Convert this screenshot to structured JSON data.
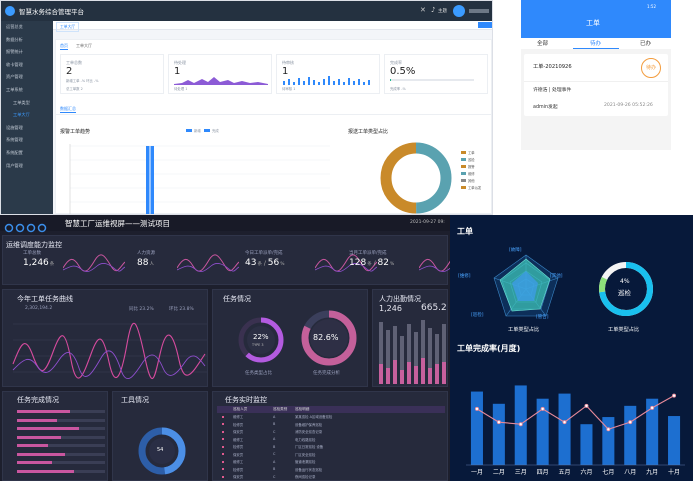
{
  "admin": {
    "app_title": "智慧水务综合管理平台",
    "user_label": "主题",
    "menu": [
      "运营总览",
      "数据分析",
      "报警统计",
      "收卡管理",
      "资产管理",
      "工单系统",
      "工单类型",
      "工单大厅",
      "设施管理",
      "系统管理",
      "系统配置",
      "用户管理"
    ],
    "active_menu_index": 7,
    "tab_active": "工单大厅",
    "tabs": [
      "首页",
      "工单大厅"
    ],
    "stats": [
      {
        "label": "工单总数",
        "value": "2",
        "sub": "新增工单 -% 环比 -%",
        "foot": "总工单数 2"
      },
      {
        "label": "待处理",
        "value": "1",
        "sub": "",
        "foot": "待处理 1"
      },
      {
        "label": "待审核",
        "value": "1",
        "sub": "",
        "foot": "待审核 1"
      },
      {
        "label": "完成率",
        "value": "0.5%",
        "sub": "",
        "foot": "完成率 -%"
      }
    ],
    "section_tab": "数据汇总",
    "trend_title": "报警工单趋势",
    "trend_legend": [
      "新增",
      "完成"
    ],
    "type_title": "报送工单类型占比",
    "type_legend": [
      "工单",
      "巡检",
      "报警",
      "维修",
      "其他",
      "工单派发"
    ]
  },
  "mobile": {
    "status_time": "1:52",
    "title": "工单",
    "tabs": [
      "全部",
      "待办",
      "已办"
    ],
    "active_tab": 1,
    "card": {
      "order_no": "工单-20210926",
      "stamp": "待办",
      "assignee": "许德浩 | 处理事件",
      "author": "admin发起",
      "time": "2021-09-26 05:52:26"
    }
  },
  "screen": {
    "title": "智慧工厂运维视屏——测试项目",
    "datetime": "2021-09-27 09:",
    "capability_title": "运维调度能力监控",
    "kpis": [
      {
        "label": "工单总数",
        "value": "1,246",
        "unit": "条"
      },
      {
        "label": "人力资源",
        "value": "88",
        "unit": "人"
      },
      {
        "label": "今日工单派单/完成",
        "value": "43",
        "unit": "条",
        "value2": "56",
        "unit2": "%"
      },
      {
        "label": "当月工单派单/完成",
        "value": "128",
        "unit": "条",
        "value2": "82",
        "unit2": "%"
      }
    ],
    "trend_title": "今年工单任务曲线",
    "trend_value": "2,302,194.2",
    "trend_legend": [
      "同比 23.2%",
      "环比 23.8%"
    ],
    "task_title": "任务情况",
    "task_pct": "22%",
    "task_pct_label": "TYPE 3",
    "task_caption": "任务类型占比",
    "task_done_pct": "82.6%",
    "task_done_caption": "任务完成分析",
    "labor_title": "人力出勤情况",
    "labor_value_a": "1,246",
    "labor_value_b": "665.2",
    "finish_title": "任务完成情况",
    "tool_title": "工具情况",
    "tool_center": "54",
    "realtime_title": "任务实时监控",
    "realtime_headers": [
      "",
      "巡检人员",
      "巡检类别",
      "巡检明细"
    ],
    "realtime_rows": [
      [
        "",
        "维修工",
        "A",
        "某某巡检 A区域设备巡检"
      ],
      [
        "",
        "检修员",
        "B",
        "设备维护保养巡检"
      ],
      [
        "",
        "保安员",
        "C",
        "消防安全巡查记录"
      ],
      [
        "",
        "维修工",
        "A",
        "电力线路巡检"
      ],
      [
        "",
        "检修员",
        "B",
        "厂区日常巡检 设备"
      ],
      [
        "",
        "保安员",
        "C",
        "厂区安全巡检"
      ],
      [
        "",
        "维修工",
        "A",
        "管道泄漏巡检"
      ],
      [
        "",
        "检修员",
        "B",
        "设备运行状态巡检"
      ],
      [
        "",
        "保安员",
        "C",
        "夜间巡检记录"
      ]
    ]
  },
  "blue": {
    "title": "工单",
    "radar_labels": [
      "[故障]",
      "[其他]",
      "[管告]",
      "[巡检]",
      "[维修]"
    ],
    "radar_caption": "工单类型占比",
    "gauge_pct": "4%",
    "gauge_label": "巡检",
    "gauge_caption": "工单类型占比",
    "rate_title": "工单完成率(月度)"
  },
  "chart_data": {
    "type": "bar",
    "title": "工单完成率(月度)",
    "categories": [
      "一月",
      "二月",
      "三月",
      "四月",
      "五月",
      "六月",
      "七月",
      "八月",
      "九月",
      "十月"
    ],
    "series": [
      {
        "values": [
          72,
          60,
          78,
          65,
          70,
          40,
          47,
          58,
          65,
          48
        ]
      },
      {
        "values": [
          55,
          42,
          40,
          55,
          42,
          58,
          35,
          42,
          56,
          68
        ]
      }
    ],
    "ylim": [
      0,
      100
    ],
    "grid": false
  },
  "colors": {
    "admin_topbar": "#243140",
    "accent_blue": "#2f89fc",
    "donut_orange": "#c98a2a",
    "donut_teal": "#5aa2b0",
    "dark_bg": "#1d1f2d",
    "pink": "#d64b9e",
    "blue_bg": "#07193a",
    "bar_blue": "#1d6fd0",
    "line_pink": "#e88a9a"
  }
}
